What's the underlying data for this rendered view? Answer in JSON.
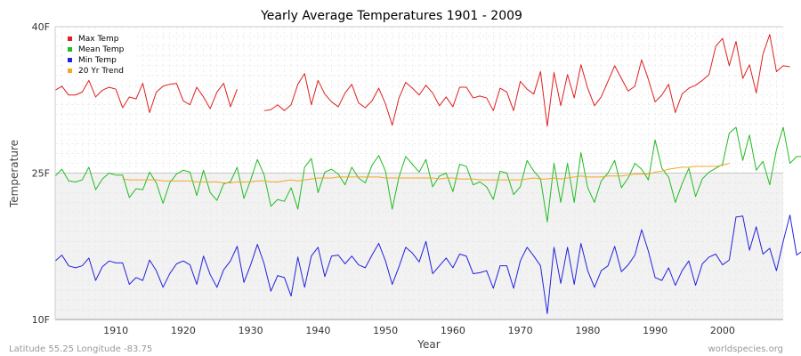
{
  "chart_data": {
    "type": "line",
    "title": "Yearly Average Temperatures 1901 - 2009",
    "xlabel": "Year",
    "ylabel": "Temperature",
    "xlim": [
      1901,
      2009
    ],
    "ylim": [
      10,
      40
    ],
    "x_ticks": [
      1910,
      1920,
      1930,
      1940,
      1950,
      1960,
      1970,
      1980,
      1990,
      2000
    ],
    "y_ticks": [
      {
        "value": 10,
        "label": "10F"
      },
      {
        "value": 25,
        "label": "25F"
      },
      {
        "value": 40,
        "label": "40F"
      }
    ],
    "grid": true,
    "legend_position": "top-left",
    "x_start": 1901,
    "series": [
      {
        "name": "Max Temp",
        "color": "#e02020",
        "values": [
          33.5,
          33.9,
          33.0,
          33.0,
          33.3,
          34.5,
          32.8,
          33.5,
          33.8,
          33.6,
          31.7,
          32.8,
          32.6,
          34.2,
          31.2,
          33.3,
          33.9,
          34.1,
          34.2,
          32.4,
          32.0,
          33.8,
          32.8,
          31.6,
          33.3,
          34.2,
          31.8,
          33.6,
          null,
          null,
          null,
          31.4,
          31.5,
          32.0,
          31.4,
          32.0,
          34.1,
          35.2,
          32.0,
          34.5,
          33.1,
          32.3,
          31.8,
          33.2,
          34.1,
          32.2,
          31.7,
          32.4,
          33.7,
          32.1,
          29.9,
          32.7,
          34.3,
          33.7,
          33.0,
          34.0,
          33.2,
          31.9,
          32.8,
          31.8,
          33.8,
          33.8,
          32.7,
          32.9,
          32.7,
          31.4,
          33.7,
          33.3,
          31.4,
          34.4,
          33.6,
          33.1,
          35.4,
          29.8,
          35.3,
          31.9,
          35.1,
          32.7,
          36.1,
          33.7,
          31.9,
          32.8,
          34.4,
          36.0,
          34.7,
          33.4,
          33.9,
          36.6,
          34.6,
          32.3,
          33.0,
          34.1,
          31.2,
          33.1,
          33.7,
          34.0,
          34.5,
          35.1,
          38.0,
          38.8,
          36.0,
          38.5,
          34.7,
          36.1,
          33.2,
          37.2,
          39.2,
          35.4,
          36.0,
          35.9
        ],
        "notes": "null = data gap"
      },
      {
        "name": "Mean Temp",
        "color": "#22bb22",
        "values": [
          24.7,
          25.4,
          24.2,
          24.1,
          24.3,
          25.6,
          23.3,
          24.4,
          25.0,
          24.8,
          24.8,
          22.5,
          23.4,
          23.3,
          25.1,
          24.0,
          21.9,
          24.0,
          24.9,
          25.3,
          25.1,
          22.7,
          25.3,
          23.0,
          22.2,
          23.9,
          24.1,
          25.6,
          22.4,
          24.3,
          26.4,
          24.8,
          21.6,
          22.3,
          22.1,
          23.5,
          21.3,
          25.6,
          26.5,
          23.0,
          25.1,
          25.4,
          24.9,
          23.8,
          25.6,
          24.5,
          24.0,
          25.8,
          26.8,
          25.2,
          21.3,
          24.6,
          26.7,
          25.9,
          25.1,
          26.4,
          23.6,
          24.7,
          25.0,
          23.1,
          25.9,
          25.7,
          23.8,
          24.1,
          23.6,
          22.3,
          25.2,
          25.0,
          22.8,
          23.6,
          26.3,
          25.2,
          24.4,
          20.0,
          26.0,
          22.0,
          26.0,
          22.0,
          27.1,
          23.5,
          22.0,
          24.2,
          25.0,
          26.3,
          23.5,
          24.5,
          26.0,
          25.4,
          24.3,
          28.4,
          25.5,
          24.6,
          22.0,
          23.9,
          25.5,
          22.6,
          24.4,
          25.1,
          25.5,
          25.9,
          29.1,
          29.7,
          26.3,
          28.9,
          25.3,
          26.2,
          23.8,
          27.4,
          29.7,
          26.0,
          26.7,
          26.7
        ]
      },
      {
        "name": "Min Temp",
        "color": "#2222dd",
        "values": [
          16.0,
          16.6,
          15.5,
          15.3,
          15.5,
          16.3,
          14.0,
          15.4,
          16.0,
          15.8,
          15.8,
          13.6,
          14.3,
          14.0,
          16.1,
          15.0,
          13.3,
          14.7,
          15.7,
          16.0,
          15.6,
          13.6,
          16.5,
          14.6,
          13.3,
          15.1,
          16.0,
          17.5,
          13.8,
          15.6,
          17.7,
          15.7,
          12.9,
          14.5,
          14.3,
          12.4,
          16.4,
          13.3,
          16.5,
          17.4,
          14.4,
          16.5,
          16.6,
          15.7,
          16.5,
          15.6,
          15.3,
          16.6,
          17.8,
          16.0,
          13.6,
          15.4,
          17.4,
          16.8,
          15.9,
          18.0,
          14.7,
          15.5,
          16.3,
          15.3,
          16.7,
          16.5,
          14.7,
          14.8,
          15.0,
          13.2,
          15.5,
          15.5,
          13.2,
          16.0,
          17.4,
          16.5,
          15.5,
          10.6,
          17.4,
          13.7,
          17.4,
          13.6,
          17.8,
          15.0,
          13.3,
          15.0,
          15.5,
          17.5,
          14.9,
          15.6,
          16.6,
          19.2,
          17.0,
          14.3,
          14.0,
          15.3,
          13.5,
          15.0,
          16.0,
          13.5,
          15.7,
          16.4,
          16.7,
          15.6,
          16.1,
          20.5,
          20.6,
          17.1,
          19.5,
          16.7,
          17.3,
          15.0,
          18.0,
          20.7,
          16.6,
          17.1,
          17.3
        ]
      },
      {
        "name": "20 Yr Trend",
        "color": "#f5a623",
        "x_start": 1911,
        "values": [
          24.4,
          24.3,
          24.3,
          24.3,
          24.3,
          24.3,
          24.2,
          24.2,
          24.2,
          24.2,
          24.2,
          24.1,
          24.1,
          24.1,
          24.1,
          24.0,
          24.0,
          24.1,
          24.1,
          24.1,
          24.2,
          24.2,
          24.1,
          24.1,
          24.2,
          24.3,
          24.2,
          24.3,
          24.4,
          24.5,
          24.5,
          24.5,
          24.6,
          24.6,
          24.6,
          24.6,
          24.6,
          24.6,
          24.6,
          24.5,
          24.5,
          24.5,
          24.5,
          24.5,
          24.5,
          24.5,
          24.5,
          24.4,
          24.5,
          24.5,
          24.4,
          24.4,
          24.4,
          24.3,
          24.3,
          24.3,
          24.3,
          24.3,
          24.3,
          24.3,
          24.4,
          24.5,
          24.4,
          24.4,
          24.5,
          24.4,
          24.5,
          24.6,
          24.7,
          24.6,
          24.6,
          24.6,
          24.7,
          24.7,
          24.7,
          24.8,
          24.9,
          24.9,
          24.9,
          25.1,
          25.2,
          25.4,
          25.5,
          25.6,
          25.6,
          25.7,
          25.7,
          25.7,
          25.7,
          25.8,
          26.0
        ]
      }
    ]
  },
  "footer": {
    "location": "Latitude 55.25 Longitude -83.75",
    "source": "worldspecies.org"
  }
}
